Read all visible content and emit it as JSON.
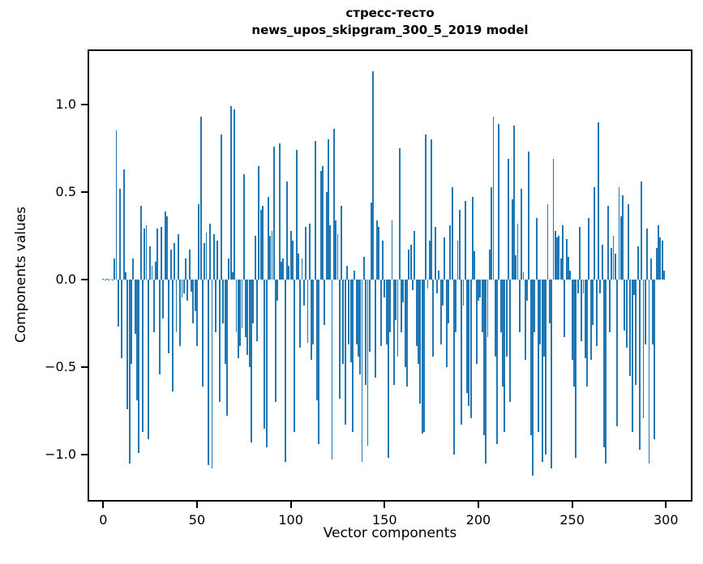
{
  "figure": {
    "title_line1": "стресс-тесто",
    "title_line2": "news_upos_skipgram_300_5_2019 model"
  },
  "axes": {
    "xlabel": "Vector components",
    "ylabel": "Components values"
  },
  "chart_data": {
    "type": "bar",
    "title": "стресс-тесто news_upos_skipgram_300_5_2019 model",
    "xlabel": "Vector components",
    "ylabel": "Components values",
    "bar_color": "#1f77b4",
    "x_start": 0,
    "x_count": 300,
    "xlim": [
      -8,
      314
    ],
    "ylim": [
      -1.25,
      1.3
    ],
    "grid": false,
    "legend": "none",
    "xticks": [
      {
        "label": "0",
        "value": 0
      },
      {
        "label": "50",
        "value": 50
      },
      {
        "label": "100",
        "value": 100
      },
      {
        "label": "150",
        "value": 150
      },
      {
        "label": "200",
        "value": 200
      },
      {
        "label": "250",
        "value": 250
      },
      {
        "label": "300",
        "value": 300
      }
    ],
    "yticks": [
      {
        "label": "1.0",
        "value": 1.0
      },
      {
        "label": "0.5",
        "value": 0.5
      },
      {
        "label": "0.0",
        "value": 0.0
      },
      {
        "label": "−0.5",
        "value": -0.5
      },
      {
        "label": "−1.0",
        "value": -1.0
      }
    ],
    "values": [
      0.004,
      -0.003,
      0.004,
      -0.004,
      0.003,
      -0.004,
      0.12,
      0.85,
      -0.27,
      0.52,
      -0.45,
      0.63,
      0.04,
      -0.74,
      -1.05,
      -0.48,
      0.12,
      -0.31,
      -0.69,
      -0.99,
      0.42,
      -0.87,
      0.29,
      0.31,
      -0.91,
      0.19,
      0.08,
      -0.3,
      0.1,
      0.29,
      -0.54,
      0.3,
      -0.22,
      0.39,
      0.36,
      -0.42,
      0.17,
      -0.64,
      0.21,
      -0.3,
      0.26,
      -0.38,
      -0.1,
      -0.08,
      0.12,
      -0.12,
      0.17,
      -0.07,
      -0.25,
      -0.18,
      -0.38,
      0.43,
      0.93,
      -0.61,
      0.21,
      0.27,
      -1.06,
      0.32,
      -1.08,
      0.26,
      -0.3,
      0.22,
      -0.7,
      0.83,
      -0.25,
      -0.48,
      -0.78,
      0.12,
      0.99,
      0.04,
      0.97,
      -0.3,
      -0.45,
      -0.38,
      -0.28,
      0.6,
      -0.33,
      -0.43,
      -0.5,
      -0.93,
      -0.25,
      0.25,
      -0.35,
      0.65,
      0.4,
      0.42,
      -0.85,
      -0.96,
      0.47,
      0.25,
      0.28,
      0.76,
      -0.7,
      -0.12,
      0.78,
      0.1,
      0.12,
      -1.04,
      0.56,
      0.08,
      0.28,
      0.22,
      -0.87,
      0.74,
      0.15,
      -0.39,
      0.12,
      -0.15,
      0.3,
      -0.36,
      0.32,
      -0.46,
      -0.37,
      0.79,
      -0.69,
      -0.94,
      0.62,
      0.65,
      -0.26,
      0.5,
      0.8,
      0.31,
      -1.03,
      0.86,
      0.34,
      0.26,
      -0.68,
      0.42,
      -0.48,
      -0.83,
      0.08,
      -0.37,
      -0.47,
      -0.87,
      0.05,
      -0.37,
      -0.44,
      -0.54,
      -1.04,
      0.13,
      -0.6,
      -0.95,
      -0.41,
      0.44,
      1.19,
      -0.56,
      0.34,
      0.3,
      -0.38,
      0.22,
      -0.1,
      -0.37,
      -1.02,
      -0.3,
      0.34,
      -0.6,
      -0.23,
      -0.44,
      0.75,
      -0.3,
      -0.13,
      -0.5,
      -0.61,
      0.17,
      0.2,
      -0.06,
      0.28,
      -0.38,
      -0.48,
      -0.71,
      -0.88,
      -0.87,
      0.83,
      -0.05,
      0.22,
      0.8,
      -0.44,
      0.3,
      -0.08,
      0.05,
      -0.37,
      -0.15,
      0.24,
      -0.5,
      -0.25,
      0.31,
      0.53,
      -1.0,
      -0.3,
      0.22,
      0.4,
      -0.83,
      -0.15,
      0.45,
      -0.65,
      -0.72,
      -0.79,
      0.47,
      0.16,
      -0.48,
      -0.12,
      -0.1,
      -0.3,
      -0.89,
      -1.05,
      -0.33,
      0.17,
      0.53,
      0.93,
      -0.44,
      -0.94,
      0.89,
      -0.3,
      -0.61,
      -0.87,
      -0.44,
      0.69,
      -0.7,
      0.46,
      0.88,
      0.14,
      0.32,
      -0.3,
      0.52,
      0.04,
      -0.46,
      -0.12,
      0.73,
      -0.89,
      -1.12,
      -0.3,
      0.35,
      -0.87,
      -0.37,
      -1.04,
      -0.44,
      -1.0,
      0.43,
      -0.25,
      -1.08,
      0.69,
      0.28,
      0.24,
      0.25,
      0.12,
      0.31,
      -0.33,
      0.23,
      0.13,
      0.05,
      -0.46,
      -0.61,
      -1.02,
      -0.08,
      0.3,
      -0.35,
      -0.08,
      -0.45,
      -0.61,
      0.35,
      -0.46,
      -0.26,
      0.53,
      -0.38,
      0.9,
      -0.08,
      0.2,
      -0.96,
      -1.05,
      0.42,
      -0.3,
      0.18,
      0.25,
      0.15,
      -0.84,
      0.53,
      0.36,
      0.48,
      -0.29,
      -0.39,
      0.43,
      -0.55,
      -0.87,
      -0.09,
      -0.6,
      0.19,
      -0.97,
      0.56,
      -0.79,
      -0.37,
      0.29,
      -1.05,
      0.12,
      -0.37,
      -0.91,
      0.18,
      0.31,
      0.24,
      0.22,
      0.05
    ]
  }
}
